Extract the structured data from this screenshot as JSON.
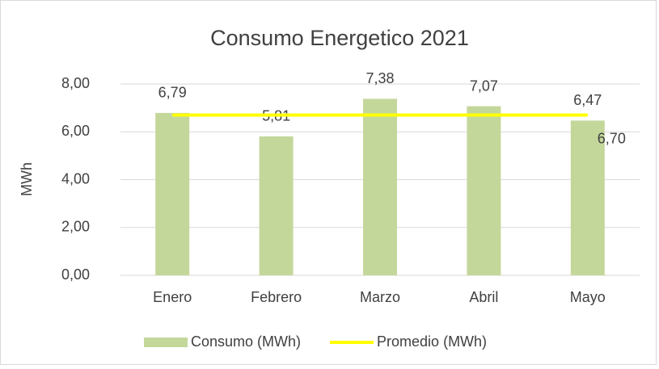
{
  "chart_data": {
    "type": "bar",
    "title": "Consumo Energetico 2021",
    "y_label": "MWh",
    "categories": [
      "Enero",
      "Febrero",
      "Marzo",
      "Abril",
      "Mayo"
    ],
    "series": [
      {
        "name": "Consumo (MWh)",
        "type": "bar",
        "color": "#c4d79b",
        "values": [
          6.79,
          5.81,
          7.38,
          7.07,
          6.47
        ],
        "value_labels": [
          "6,79",
          "5,81",
          "7,38",
          "7,07",
          "6,47"
        ]
      },
      {
        "name": "Promedio (MWh)",
        "type": "line",
        "color": "#ffff00",
        "values": [
          6.7,
          6.7,
          6.7,
          6.7,
          6.7
        ],
        "value_labels": [
          null,
          null,
          null,
          null,
          "6,70"
        ]
      }
    ],
    "ylim": [
      0,
      8
    ],
    "yticks": [
      {
        "value": 0,
        "label": "0,00"
      },
      {
        "value": 2,
        "label": "2,00"
      },
      {
        "value": 4,
        "label": "4,00"
      },
      {
        "value": 6,
        "label": "6,00"
      },
      {
        "value": 8,
        "label": "8,00"
      }
    ],
    "grid": true,
    "legend": "bottom"
  }
}
